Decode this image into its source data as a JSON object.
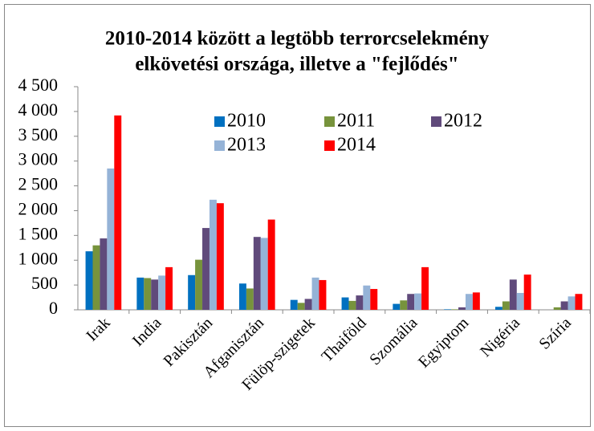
{
  "chart_data": {
    "type": "bar",
    "title": [
      "2010-2014 között a legtöbb terrorcselekmény",
      "elkövetési országa, illetve a \"fejlődés\""
    ],
    "categories": [
      "Irak",
      "India",
      "Pakisztán",
      "Afganisztán",
      "Fülöp-szigetek",
      "Thaiföld",
      "Szomália",
      "Egyiptom",
      "Nigéria",
      "Szíria"
    ],
    "series": [
      {
        "name": "2010",
        "color": "#0070c0",
        "values": [
          1180,
          650,
          700,
          530,
          200,
          250,
          120,
          10,
          60,
          0
        ]
      },
      {
        "name": "2011",
        "color": "#77933c",
        "values": [
          1300,
          640,
          1010,
          430,
          140,
          180,
          190,
          10,
          170,
          50
        ]
      },
      {
        "name": "2012",
        "color": "#604a7b",
        "values": [
          1440,
          610,
          1650,
          1470,
          220,
          290,
          320,
          50,
          610,
          170
        ]
      },
      {
        "name": "2013",
        "color": "#95b3d7",
        "values": [
          2850,
          690,
          2220,
          1450,
          650,
          490,
          330,
          320,
          340,
          270
        ]
      },
      {
        "name": "2014",
        "color": "#ff0000",
        "values": [
          3920,
          860,
          2150,
          1820,
          600,
          420,
          860,
          350,
          710,
          320
        ]
      }
    ],
    "ylim": [
      0,
      4500
    ],
    "yticks": [
      0,
      500,
      {
        "value": 1000,
        "label": "1 000"
      },
      {
        "value": 1500,
        "label": "1 500"
      },
      {
        "value": 2000,
        "label": "2 000"
      },
      {
        "value": 2500,
        "label": "2 500"
      },
      {
        "value": 3000,
        "label": "3 000"
      },
      {
        "value": 3500,
        "label": "3 500"
      },
      {
        "value": 4000,
        "label": "4 000"
      },
      {
        "value": 4500,
        "label": "4 500"
      }
    ],
    "grid": false,
    "legend": "top"
  }
}
